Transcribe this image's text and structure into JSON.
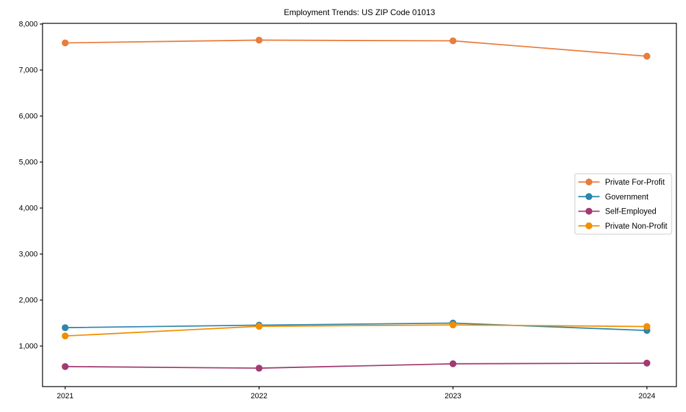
{
  "page": {
    "title": "Employment Trends: US ZIP Code 01013"
  },
  "chart_data": {
    "type": "line",
    "title": "Employment Trends: US ZIP Code 01013",
    "xlabel": "",
    "ylabel": "",
    "grid": false,
    "background": "#ffffff",
    "axis_color": "#000000",
    "legend_position": "center-right",
    "legend_border_color": "#cccccc",
    "marker": "circle",
    "x": [
      2021,
      2022,
      2023,
      2024
    ],
    "xtick_labels": [
      "2021",
      "2022",
      "2023",
      "2024"
    ],
    "yticks": [
      1000,
      2000,
      3000,
      4000,
      5000,
      6000,
      7000,
      8000
    ],
    "ytick_labels": [
      "1,000",
      "2,000",
      "3,000",
      "4,000",
      "5,000",
      "6,000",
      "7,000",
      "8,000"
    ],
    "ylim": [
      120,
      8000
    ],
    "series": [
      {
        "name": "Private For-Profit",
        "color": "#E87D3E",
        "values": [
          7590,
          7650,
          7635,
          7300
        ]
      },
      {
        "name": "Government",
        "color": "#2E86AB",
        "values": [
          1400,
          1455,
          1500,
          1340
        ]
      },
      {
        "name": "Self-Employed",
        "color": "#A23B72",
        "values": [
          555,
          520,
          615,
          630
        ]
      },
      {
        "name": "Private Non-Profit",
        "color": "#F18F01",
        "values": [
          1220,
          1430,
          1460,
          1425
        ]
      }
    ]
  }
}
